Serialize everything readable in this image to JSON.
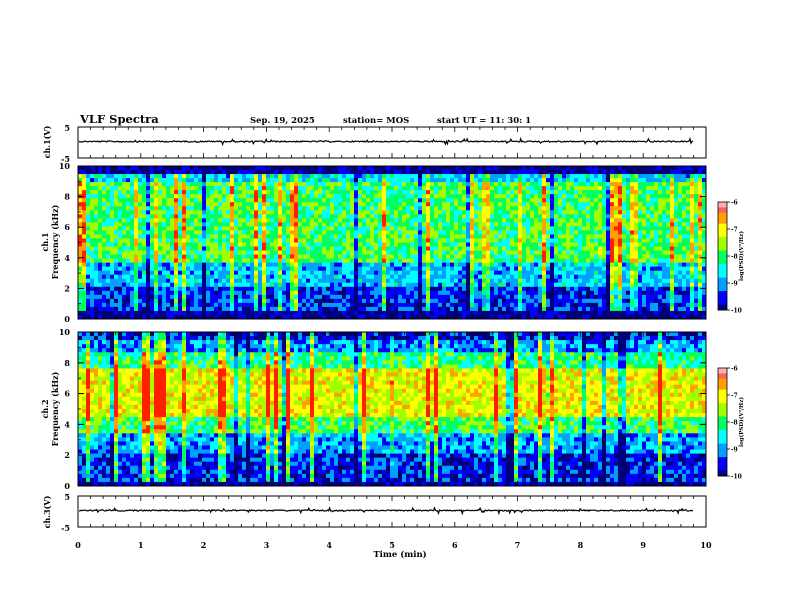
{
  "header": {
    "title": "VLF Spectra",
    "date": "Sep. 19, 2025",
    "station": "station= MOS",
    "start": "start  UT =   11: 30: 1"
  },
  "chart_data": [
    {
      "type": "line",
      "name": "ch1-waveform",
      "ylabel": "ch.1(V)",
      "ylim": [
        -5,
        5
      ],
      "yticks": [
        "5",
        "-5"
      ],
      "baseline": 0
    },
    {
      "type": "heatmap",
      "name": "ch1-spectrogram",
      "ylabel_line1": "ch.1",
      "ylabel_line2": "Frequency (kHz)",
      "ylim": [
        0,
        10
      ],
      "yticks": [
        "10",
        "8",
        "6",
        "4",
        "2",
        "0"
      ],
      "colorbar": {
        "label": "log(PSD)(V²/Hz)",
        "ticks": [
          "-6",
          "-7",
          "-8",
          "-9",
          "-10"
        ],
        "range": [
          -10,
          -6
        ]
      },
      "bands": [
        {
          "fmin": 0.0,
          "fmax": 0.4,
          "level": -10
        },
        {
          "fmin": 0.4,
          "fmax": 2.2,
          "level": -9.4
        },
        {
          "fmin": 2.2,
          "fmax": 3.8,
          "level": -8.8
        },
        {
          "fmin": 3.8,
          "fmax": 9.0,
          "level": -7.9
        },
        {
          "fmin": 9.0,
          "fmax": 9.5,
          "level": -8.7
        },
        {
          "fmin": 9.5,
          "fmax": 10.0,
          "level": -10
        }
      ]
    },
    {
      "type": "heatmap",
      "name": "ch2-spectrogram",
      "ylabel_line1": "ch.2",
      "ylabel_line2": "Frequency (kHz)",
      "ylim": [
        0,
        10
      ],
      "yticks": [
        "10",
        "8",
        "6",
        "4",
        "2",
        "0"
      ],
      "colorbar": {
        "label": "log(PSD)(V²/Hz)",
        "ticks": [
          "-6",
          "-7",
          "-8",
          "-9",
          "-10"
        ],
        "range": [
          -10,
          -6
        ]
      },
      "bands": [
        {
          "fmin": 0.0,
          "fmax": 0.3,
          "level": -10
        },
        {
          "fmin": 0.3,
          "fmax": 2.0,
          "level": -9.5
        },
        {
          "fmin": 2.0,
          "fmax": 3.5,
          "level": -8.9
        },
        {
          "fmin": 3.5,
          "fmax": 4.6,
          "level": -7.9
        },
        {
          "fmin": 4.6,
          "fmax": 7.6,
          "level": -7.1
        },
        {
          "fmin": 7.6,
          "fmax": 8.8,
          "level": -8.1
        },
        {
          "fmin": 8.8,
          "fmax": 9.5,
          "level": -9.0
        },
        {
          "fmin": 9.5,
          "fmax": 10.0,
          "level": -9.6
        }
      ]
    },
    {
      "type": "line",
      "name": "ch3-waveform",
      "ylabel": "ch.3(V)",
      "ylim": [
        -5,
        5
      ],
      "yticks": [
        "5",
        "-5"
      ],
      "baseline": 0
    }
  ],
  "xaxis": {
    "label": "Time (min)",
    "xlim": [
      0,
      10
    ],
    "ticks": [
      "0",
      "1",
      "2",
      "3",
      "4",
      "5",
      "6",
      "7",
      "8",
      "9",
      "10"
    ]
  },
  "colors": {
    "colormap": [
      "#00007a",
      "#0000ff",
      "#00a0ff",
      "#00ffff",
      "#00ff60",
      "#a0ff00",
      "#ffff00",
      "#ffa000",
      "#ff2000",
      "#ff4040",
      "#ffffff"
    ]
  }
}
